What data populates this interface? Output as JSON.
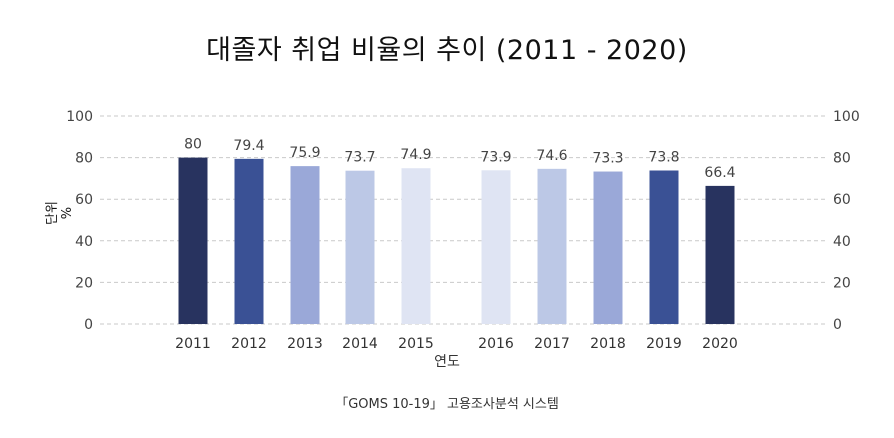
{
  "chart_data": {
    "type": "bar",
    "title": "대졸자 취업 비율의 추이 (2011 - 2020)",
    "xlabel": "연도",
    "ylabel": "단위 %",
    "source": "「GOMS 10-19」 고용조사분석 시스템",
    "categories": [
      "2011",
      "2012",
      "2013",
      "2014",
      "2015",
      "2016",
      "2017",
      "2018",
      "2019",
      "2020"
    ],
    "values": [
      80,
      79.4,
      75.9,
      73.7,
      74.9,
      73.9,
      74.6,
      73.3,
      73.8,
      66.4
    ],
    "value_labels": [
      "80",
      "79.4",
      "75.9",
      "73.7",
      "74.9",
      "73.9",
      "74.6",
      "73.3",
      "73.8",
      "66.4"
    ],
    "bar_colors": [
      "#28335f",
      "#3a5195",
      "#9aa8d8",
      "#bcc8e6",
      "#dfe4f3",
      "#dfe4f3",
      "#bcc8e6",
      "#9aa8d8",
      "#3a5195",
      "#28335f"
    ],
    "ylim": [
      0,
      100
    ],
    "yticks": [
      0,
      20,
      40,
      60,
      80,
      100
    ],
    "secondary_y_axis": true,
    "grid": "dashed horizontal",
    "legend": "none"
  }
}
